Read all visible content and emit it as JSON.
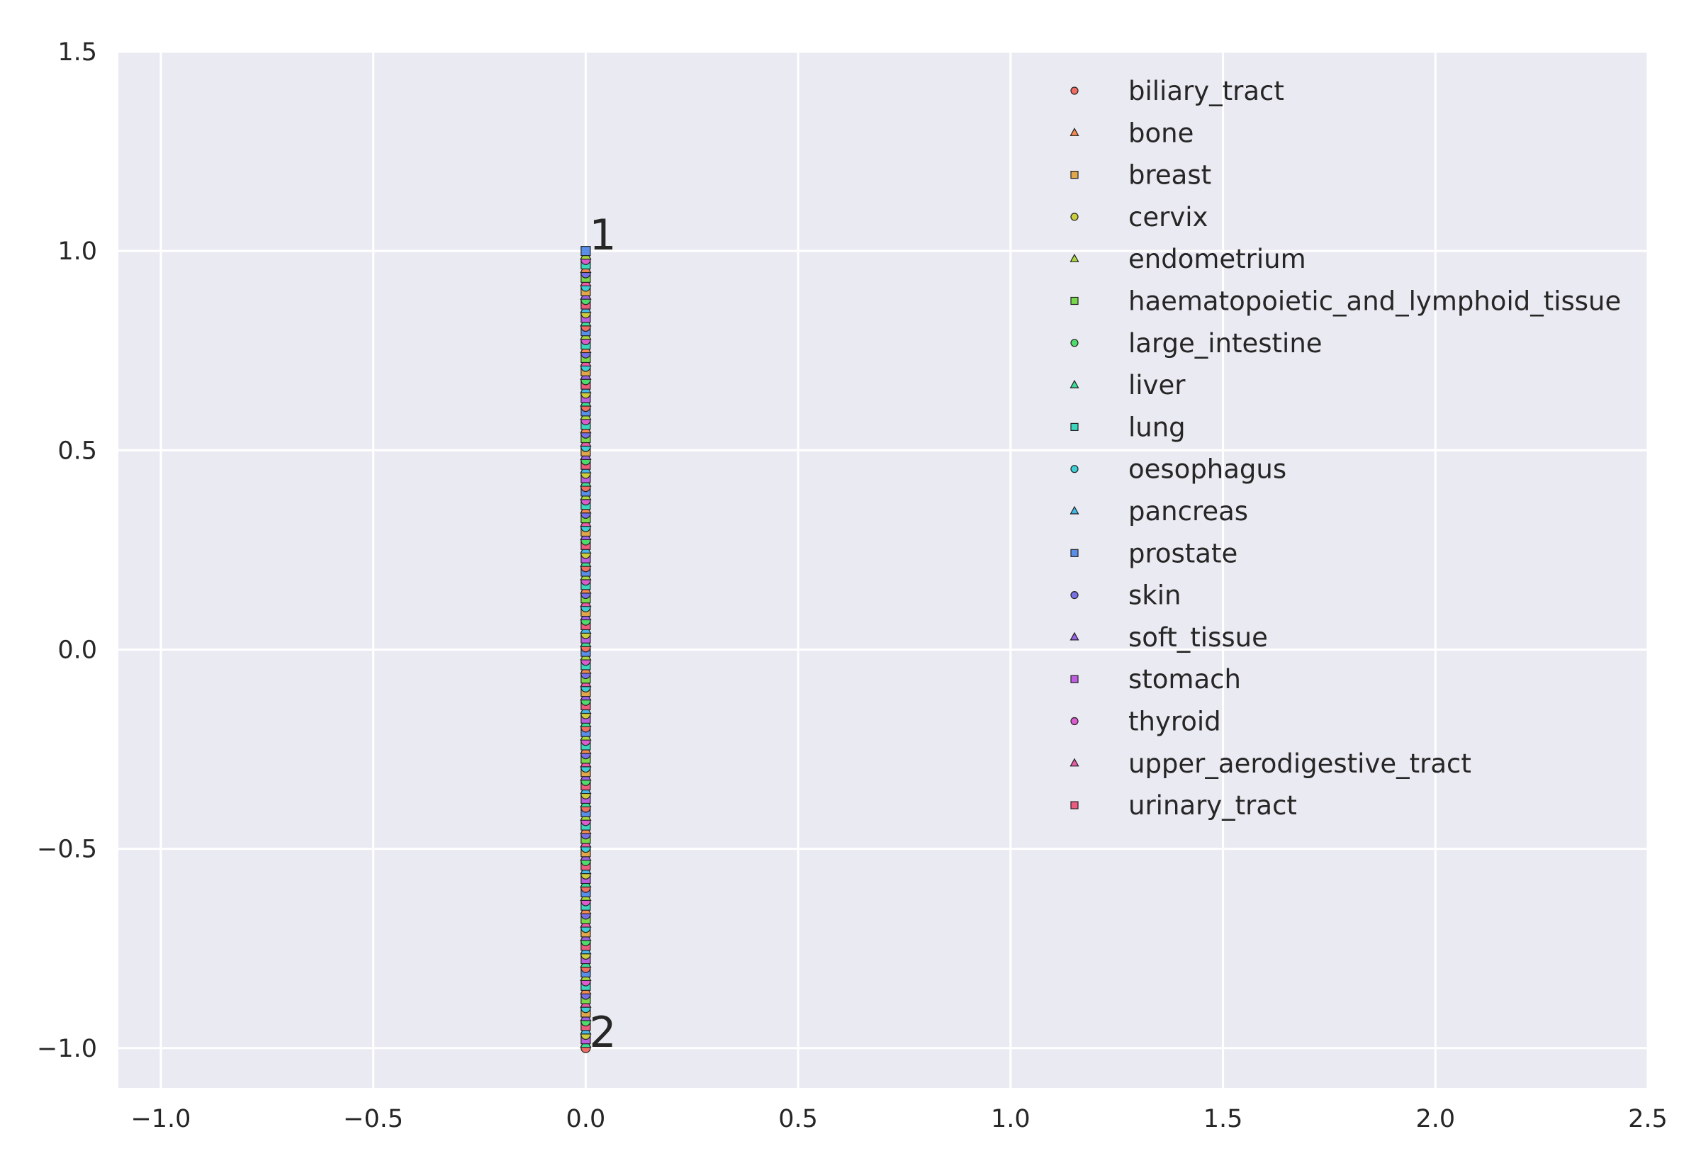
{
  "chart_data": {
    "type": "scatter",
    "title": "",
    "xlabel": "",
    "ylabel": "",
    "xlim": [
      -1.1,
      2.5
    ],
    "ylim": [
      -1.1,
      1.5
    ],
    "xticks": [
      -1.0,
      -0.5,
      0.0,
      0.5,
      1.0,
      1.5,
      2.0,
      2.5
    ],
    "yticks": [
      -1.0,
      -0.5,
      0.0,
      0.5,
      1.0,
      1.5
    ],
    "xtick_labels": [
      "−1.0",
      "−0.5",
      "0.0",
      "0.5",
      "1.0",
      "1.5",
      "2.0",
      "2.5"
    ],
    "ytick_labels": [
      "−1.0",
      "−0.5",
      "0.0",
      "0.5",
      "1.0",
      "1.5"
    ],
    "grid": true,
    "background": "#eaeaf2",
    "grid_color": "#ffffff",
    "legend": {
      "placement": "top-right",
      "frame": false
    },
    "series": [
      {
        "name": "biliary_tract",
        "marker": "circle",
        "color": "#f16d63"
      },
      {
        "name": "bone",
        "marker": "triangle",
        "color": "#f58a4e"
      },
      {
        "name": "breast",
        "marker": "square",
        "color": "#e0a84a"
      },
      {
        "name": "cervix",
        "marker": "circle",
        "color": "#cbcd3f"
      },
      {
        "name": "endometrium",
        "marker": "triangle",
        "color": "#a8d63c"
      },
      {
        "name": "haematopoietic_and_lymphoid_tissue",
        "marker": "square",
        "color": "#77d94a"
      },
      {
        "name": "large_intestine",
        "marker": "circle",
        "color": "#4ddc6b"
      },
      {
        "name": "liver",
        "marker": "triangle",
        "color": "#3ddb97"
      },
      {
        "name": "lung",
        "marker": "square",
        "color": "#3bd6bb"
      },
      {
        "name": "oesophagus",
        "marker": "circle",
        "color": "#3ccfd6"
      },
      {
        "name": "pancreas",
        "marker": "triangle",
        "color": "#45b8e6"
      },
      {
        "name": "prostate",
        "marker": "square",
        "color": "#5a8ee8"
      },
      {
        "name": "skin",
        "marker": "circle",
        "color": "#7870e6"
      },
      {
        "name": "soft_tissue",
        "marker": "triangle",
        "color": "#9a63e6"
      },
      {
        "name": "stomach",
        "marker": "square",
        "color": "#bd5ee0"
      },
      {
        "name": "thyroid",
        "marker": "circle",
        "color": "#dc5bd0"
      },
      {
        "name": "upper_aerodigestive_tract",
        "marker": "triangle",
        "color": "#e95ca8"
      },
      {
        "name": "urinary_tract",
        "marker": "square",
        "color": "#ec5c7e"
      }
    ],
    "point_column": {
      "x": 0.0,
      "y_range": [
        -1.0,
        1.0
      ]
    },
    "annotations": [
      {
        "text": "1",
        "x": 0.0,
        "y": 1.0
      },
      {
        "text": "2",
        "x": 0.0,
        "y": -1.0
      }
    ]
  }
}
